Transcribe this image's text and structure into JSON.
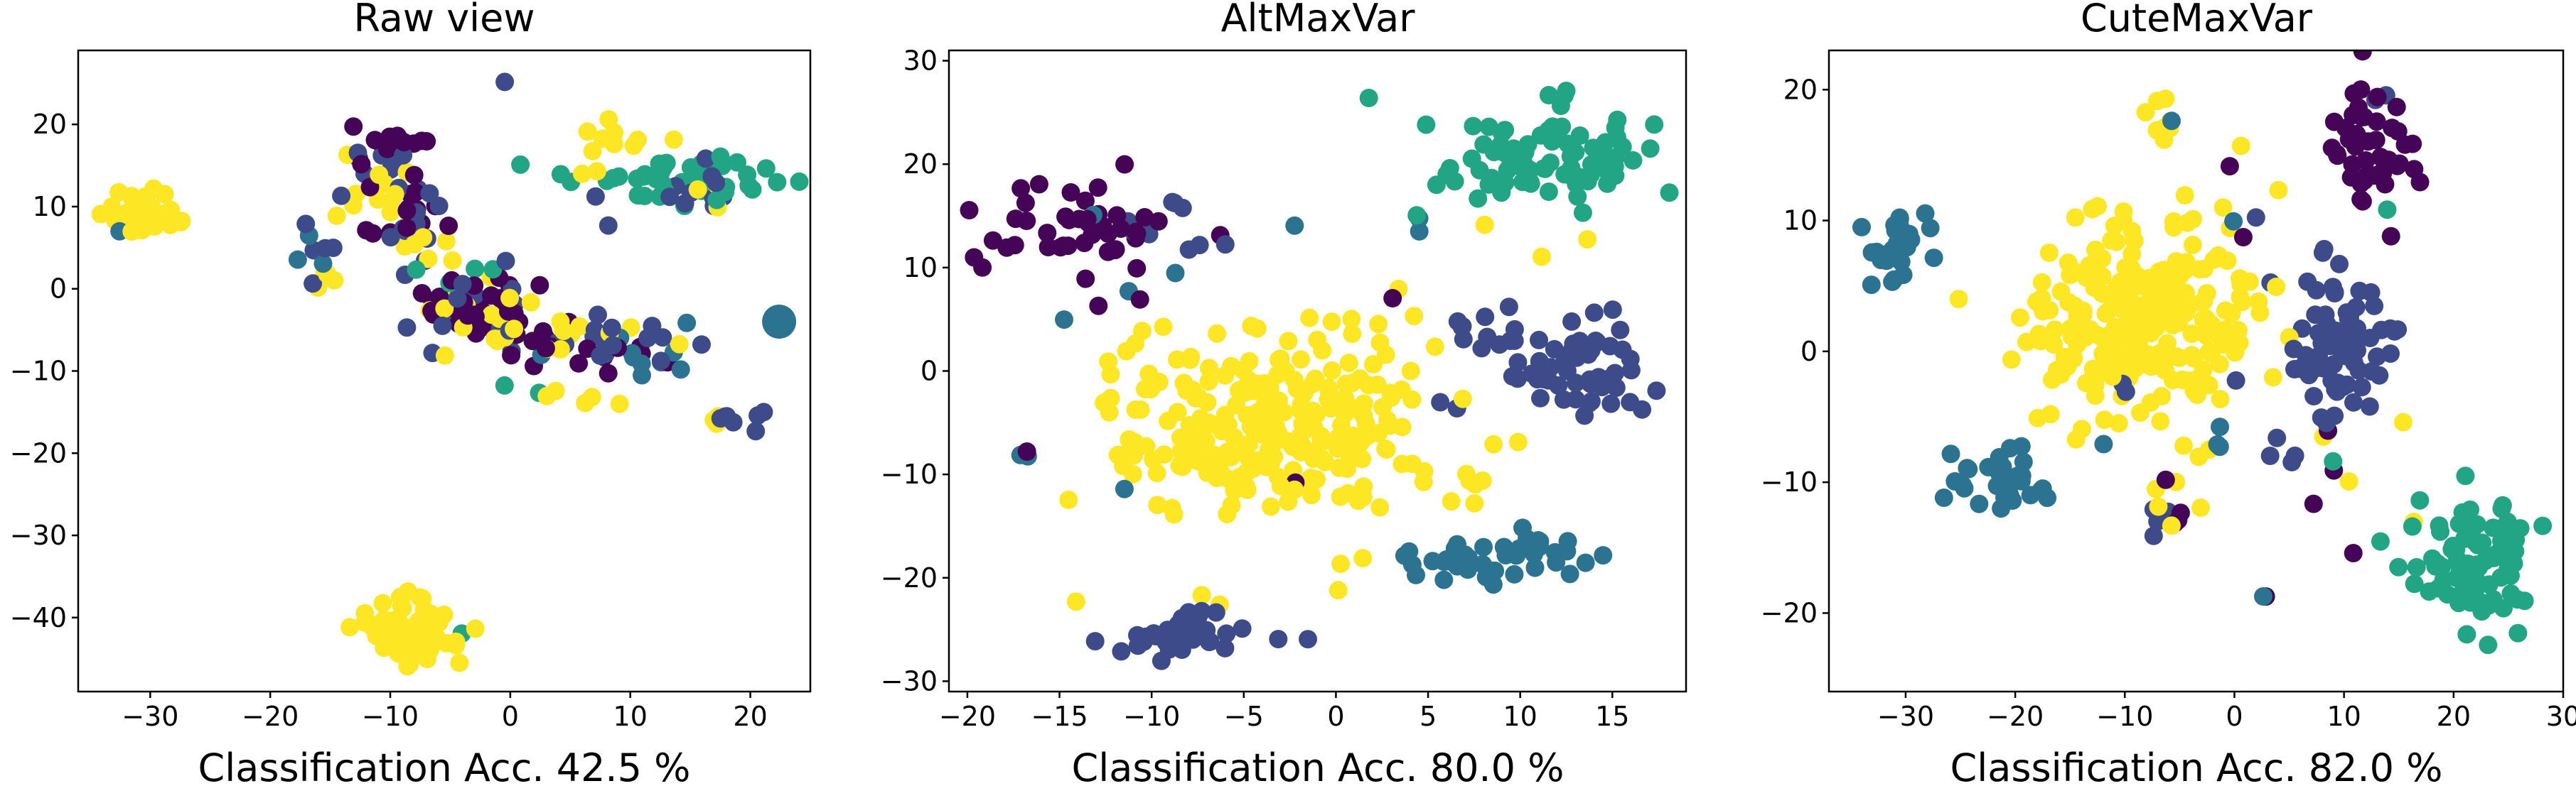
{
  "chart_data": [
    {
      "type": "scatter",
      "title": "Raw view",
      "xlabel": "Classification Acc. 42.5 %",
      "ylabel": "",
      "xlim": [
        -36,
        25
      ],
      "ylim": [
        -49,
        29
      ],
      "xticks": [
        -30,
        -20,
        -10,
        0,
        10,
        20
      ],
      "yticks": [
        -40,
        -30,
        -20,
        -10,
        0,
        10,
        20
      ],
      "grid": false,
      "clusters": [
        {
          "class": 4,
          "cx": -30.5,
          "cy": 9,
          "sx": 1.6,
          "sy": 1.3,
          "n": 40
        },
        {
          "class": 4,
          "cx": -9,
          "cy": -42,
          "sx": 2.2,
          "sy": 1.8,
          "n": 70
        },
        {
          "class": 4,
          "cx": -8.5,
          "cy": -37,
          "sx": 0.6,
          "sy": 1,
          "n": 4
        },
        {
          "class": 2,
          "cx": -3.5,
          "cy": -42,
          "sx": 0.2,
          "sy": 0.2,
          "n": 1
        },
        {
          "class": 2,
          "cx": 15,
          "cy": 13,
          "sx": 4.5,
          "sy": 1.5,
          "n": 45
        },
        {
          "class": 1,
          "cx": 15,
          "cy": 12,
          "sx": 3.5,
          "sy": 1.5,
          "n": 12
        },
        {
          "class": 4,
          "cx": 8,
          "cy": 18,
          "sx": 2.5,
          "sy": 1.2,
          "n": 10
        },
        {
          "class": 4,
          "cx": 16.5,
          "cy": 11,
          "sx": 1.5,
          "sy": 1,
          "n": 3
        },
        {
          "class": 0,
          "cx": -10,
          "cy": 17,
          "sx": 1.5,
          "sy": 2,
          "n": 15
        },
        {
          "class": 1,
          "cx": -11,
          "cy": 14,
          "sx": 2,
          "sy": 2,
          "n": 10
        },
        {
          "class": 4,
          "cx": -11,
          "cy": 12,
          "sx": 1.5,
          "sy": 2,
          "n": 12
        },
        {
          "class": 0,
          "cx": -8,
          "cy": 8,
          "sx": 2,
          "sy": 2,
          "n": 14
        },
        {
          "class": 1,
          "cx": -8,
          "cy": 8,
          "sx": 2,
          "sy": 2,
          "n": 8
        },
        {
          "class": 4,
          "cx": -7,
          "cy": 5,
          "sx": 1.5,
          "sy": 2,
          "n": 6
        },
        {
          "class": 0,
          "cx": -3,
          "cy": -3,
          "sx": 2.5,
          "sy": 2,
          "n": 35
        },
        {
          "class": 1,
          "cx": -4,
          "cy": -2,
          "sx": 3,
          "sy": 2.5,
          "n": 16
        },
        {
          "class": 4,
          "cx": -3,
          "cy": -4,
          "sx": 3,
          "sy": 2.5,
          "n": 14
        },
        {
          "class": 2,
          "cx": -4,
          "cy": 1,
          "sx": 2,
          "sy": 1.5,
          "n": 4
        },
        {
          "class": 0,
          "cx": 6,
          "cy": -7,
          "sx": 3.5,
          "sy": 1.5,
          "n": 16
        },
        {
          "class": 1,
          "cx": 8,
          "cy": -7,
          "sx": 3.5,
          "sy": 1.5,
          "n": 18
        },
        {
          "class": 4,
          "cx": 6,
          "cy": -6,
          "sx": 4,
          "sy": 1.5,
          "n": 12
        },
        {
          "class": 3,
          "cx": 9,
          "cy": -8,
          "sx": 3,
          "sy": 1.5,
          "n": 6
        },
        {
          "class": 1,
          "cx": -16,
          "cy": 4,
          "sx": 1,
          "sy": 3,
          "n": 5
        },
        {
          "class": 4,
          "cx": -15,
          "cy": 1,
          "sx": 0.6,
          "sy": 1,
          "n": 4
        },
        {
          "class": 3,
          "cx": -16,
          "cy": 5,
          "sx": 0.8,
          "sy": 2,
          "n": 3
        },
        {
          "class": 1,
          "cx": 18.5,
          "cy": -16,
          "sx": 1.2,
          "sy": 0.6,
          "n": 7
        },
        {
          "class": 4,
          "cx": 17.5,
          "cy": -16,
          "sx": 0.6,
          "sy": 0.5,
          "n": 3
        },
        {
          "class": 4,
          "cx": 7.5,
          "cy": -14,
          "sx": 1,
          "sy": 0.5,
          "n": 3
        },
        {
          "class": 4,
          "cx": 3,
          "cy": -13,
          "sx": 0.6,
          "sy": 0.5,
          "n": 2
        },
        {
          "class": 4,
          "cx": 6.5,
          "cy": 14,
          "sx": 1.5,
          "sy": 0.3,
          "n": 2
        },
        {
          "class": 2,
          "cx": 2.5,
          "cy": -13,
          "sx": 0.5,
          "sy": 0.3,
          "n": 1
        },
        {
          "class": 2,
          "cx": -0.3,
          "cy": -12,
          "sx": 0.2,
          "sy": 0.2,
          "n": 1
        },
        {
          "class": 1,
          "cx": -0.5,
          "cy": 25.3,
          "sx": 0.1,
          "sy": 0.1,
          "n": 1
        },
        {
          "class": 3,
          "cx": 15,
          "cy": -4,
          "sx": 0.2,
          "sy": 0.2,
          "n": 1
        },
        {
          "class": 3,
          "cx": -32.5,
          "cy": 7,
          "sx": 0.2,
          "sy": 0.2,
          "n": 1
        },
        {
          "class": 3,
          "cx": 12.5,
          "cy": -9,
          "sx": 1.5,
          "sy": 0.8,
          "n": 3
        }
      ],
      "big_points": [
        {
          "class": 3,
          "x": 22.4,
          "y": -4
        }
      ]
    },
    {
      "type": "scatter",
      "title": "AltMaxVar",
      "xlabel": "Classification Acc. 80.0 %",
      "ylabel": "",
      "xlim": [
        -21,
        19
      ],
      "ylim": [
        -31,
        31
      ],
      "xticks": [
        -20,
        -15,
        -10,
        -5,
        0,
        5,
        10,
        15
      ],
      "yticks": [
        -30,
        -20,
        -10,
        0,
        10,
        20,
        30
      ],
      "grid": false,
      "clusters": [
        {
          "class": 4,
          "cx": -3.5,
          "cy": -5,
          "sx": 4.5,
          "sy": 4.5,
          "n": 260
        },
        {
          "class": 0,
          "cx": -13.5,
          "cy": 14,
          "sx": 2.3,
          "sy": 2.6,
          "n": 45
        },
        {
          "class": 2,
          "cx": 11,
          "cy": 21,
          "sx": 3.2,
          "sy": 2.8,
          "n": 85
        },
        {
          "class": 1,
          "cx": 13.5,
          "cy": 0,
          "sx": 2,
          "sy": 3,
          "n": 50
        },
        {
          "class": 1,
          "cx": 8,
          "cy": 2.5,
          "sx": 1.5,
          "sy": 2,
          "n": 10
        },
        {
          "class": 3,
          "cx": 8.5,
          "cy": -18,
          "sx": 2.2,
          "sy": 1.1,
          "n": 40
        },
        {
          "class": 1,
          "cx": -8,
          "cy": -25.5,
          "sx": 2,
          "sy": 1.1,
          "n": 40
        },
        {
          "class": 1,
          "cx": -10,
          "cy": 17,
          "sx": 1,
          "sy": 2,
          "n": 6
        },
        {
          "class": 3,
          "cx": -17,
          "cy": -8,
          "sx": 0.5,
          "sy": 0.3,
          "n": 2
        },
        {
          "class": 3,
          "cx": -14.5,
          "cy": 5,
          "sx": 0.2,
          "sy": 0.2,
          "n": 1
        },
        {
          "class": 3,
          "cx": -11.5,
          "cy": -11.5,
          "sx": 0.2,
          "sy": 0.2,
          "n": 1
        },
        {
          "class": 3,
          "cx": -13,
          "cy": 15,
          "sx": 0.2,
          "sy": 0.2,
          "n": 1
        },
        {
          "class": 3,
          "cx": -11,
          "cy": 8,
          "sx": 0.2,
          "sy": 0.2,
          "n": 1
        },
        {
          "class": 3,
          "cx": -8.5,
          "cy": 9.5,
          "sx": 0.2,
          "sy": 0.2,
          "n": 1
        },
        {
          "class": 3,
          "cx": -2.5,
          "cy": 14,
          "sx": 0.2,
          "sy": 0.2,
          "n": 1
        },
        {
          "class": 3,
          "cx": 5.5,
          "cy": -17,
          "sx": 1,
          "sy": 0.5,
          "n": 2
        },
        {
          "class": 3,
          "cx": 4.5,
          "cy": 13,
          "sx": 0.3,
          "sy": 1.5,
          "n": 2
        },
        {
          "class": 0,
          "cx": -17,
          "cy": -8,
          "sx": 0.2,
          "sy": 0.2,
          "n": 1
        },
        {
          "class": 0,
          "cx": -18,
          "cy": 12,
          "sx": 0.2,
          "sy": 0.2,
          "n": 1
        },
        {
          "class": 0,
          "cx": -2,
          "cy": -11,
          "sx": 0.2,
          "sy": 0.2,
          "n": 1
        },
        {
          "class": 0,
          "cx": 3,
          "cy": 7,
          "sx": 0.2,
          "sy": 0.2,
          "n": 1
        },
        {
          "class": 1,
          "cx": -8,
          "cy": 12,
          "sx": 1,
          "sy": 0.4,
          "n": 2
        },
        {
          "class": 1,
          "cx": -6,
          "cy": 12,
          "sx": 0.3,
          "sy": 0.3,
          "n": 1
        },
        {
          "class": 1,
          "cx": 7,
          "cy": 4.5,
          "sx": 0.5,
          "sy": 0.5,
          "n": 2
        },
        {
          "class": 1,
          "cx": 6,
          "cy": -4,
          "sx": 0.5,
          "sy": 0.5,
          "n": 2
        },
        {
          "class": 4,
          "cx": -14,
          "cy": -22,
          "sx": 0.3,
          "sy": 0.2,
          "n": 1
        },
        {
          "class": 4,
          "cx": -7.5,
          "cy": -22,
          "sx": 0.3,
          "sy": 0.2,
          "n": 1
        },
        {
          "class": 4,
          "cx": 8,
          "cy": -11,
          "sx": 0.5,
          "sy": 0.8,
          "n": 4
        },
        {
          "class": 4,
          "cx": 8.3,
          "cy": 14.5,
          "sx": 0.2,
          "sy": 0.2,
          "n": 1
        },
        {
          "class": 4,
          "cx": 11.5,
          "cy": 11,
          "sx": 0.2,
          "sy": 0.2,
          "n": 1
        },
        {
          "class": 4,
          "cx": 13.5,
          "cy": 12.5,
          "sx": 0.2,
          "sy": 0.2,
          "n": 1
        },
        {
          "class": 4,
          "cx": 3.5,
          "cy": 8,
          "sx": 0.2,
          "sy": 0.2,
          "n": 1
        }
      ],
      "big_points": []
    },
    {
      "type": "scatter",
      "title": "CuteMaxVar",
      "xlabel": "Classification Acc. 82.0 %",
      "ylabel": "",
      "xlim": [
        -37,
        30
      ],
      "ylim": [
        -26,
        23
      ],
      "xticks": [
        -30,
        -20,
        -10,
        0,
        10,
        20,
        30
      ],
      "yticks": [
        -20,
        -10,
        0,
        10,
        20
      ],
      "grid": false,
      "clusters": [
        {
          "class": 4,
          "cx": -8,
          "cy": 3,
          "sx": 5,
          "sy": 4,
          "n": 260
        },
        {
          "class": 4,
          "cx": -6,
          "cy": 18,
          "sx": 0.8,
          "sy": 1,
          "n": 8
        },
        {
          "class": 0,
          "cx": 12,
          "cy": 15,
          "sx": 2,
          "sy": 2.5,
          "n": 45
        },
        {
          "class": 3,
          "cx": -30.5,
          "cy": 8,
          "sx": 1.6,
          "sy": 1.6,
          "n": 30
        },
        {
          "class": 3,
          "cx": -21,
          "cy": -10,
          "sx": 2.2,
          "sy": 1.6,
          "n": 35
        },
        {
          "class": 1,
          "cx": 10,
          "cy": 0,
          "sx": 3,
          "sy": 3,
          "n": 70
        },
        {
          "class": 2,
          "cx": 22,
          "cy": -16,
          "sx": 3,
          "sy": 2.5,
          "n": 80
        },
        {
          "class": 0,
          "cx": -6,
          "cy": -12.5,
          "sx": 1,
          "sy": 0.8,
          "n": 4
        },
        {
          "class": 1,
          "cx": -7,
          "cy": -13,
          "sx": 1,
          "sy": 0.8,
          "n": 4
        },
        {
          "class": 4,
          "cx": -6,
          "cy": -11,
          "sx": 1.5,
          "sy": 1,
          "n": 6
        },
        {
          "class": 0,
          "cx": 3,
          "cy": -18.5,
          "sx": 0.2,
          "sy": 0.2,
          "n": 1
        },
        {
          "class": 0,
          "cx": 9,
          "cy": -8,
          "sx": 0.8,
          "sy": 1,
          "n": 2
        },
        {
          "class": 0,
          "cx": 11,
          "cy": -15.5,
          "sx": 0.2,
          "sy": 0.2,
          "n": 1
        },
        {
          "class": 0,
          "cx": 7,
          "cy": -11.5,
          "sx": 0.2,
          "sy": 0.2,
          "n": 1
        },
        {
          "class": 0,
          "cx": 0,
          "cy": 14,
          "sx": 0.2,
          "sy": 0.2,
          "n": 1
        },
        {
          "class": 0,
          "cx": 1,
          "cy": 9,
          "sx": 0.2,
          "sy": 0.2,
          "n": 1
        },
        {
          "class": 3,
          "cx": 2.5,
          "cy": -18.5,
          "sx": 0.2,
          "sy": 0.2,
          "n": 1
        },
        {
          "class": 3,
          "cx": -6,
          "cy": 18,
          "sx": 0.3,
          "sy": 0.2,
          "n": 1
        },
        {
          "class": 3,
          "cx": -12,
          "cy": -7,
          "sx": 0.3,
          "sy": 0.2,
          "n": 1
        },
        {
          "class": 3,
          "cx": -2,
          "cy": -7,
          "sx": 0.5,
          "sy": 0.5,
          "n": 2
        },
        {
          "class": 3,
          "cx": 0,
          "cy": 9.5,
          "sx": 0.3,
          "sy": 0.3,
          "n": 1
        },
        {
          "class": 3,
          "cx": -1,
          "cy": -6,
          "sx": 0.3,
          "sy": 0.3,
          "n": 1
        },
        {
          "class": 2,
          "cx": 9,
          "cy": -8.5,
          "sx": 0.2,
          "sy": 0.2,
          "n": 1
        },
        {
          "class": 2,
          "cx": 14,
          "cy": 10.5,
          "sx": 0.2,
          "sy": 0.2,
          "n": 1
        },
        {
          "class": 1,
          "cx": -10,
          "cy": -2.5,
          "sx": 0.5,
          "sy": 0.5,
          "n": 2
        },
        {
          "class": 1,
          "cx": 4,
          "cy": -7.5,
          "sx": 0.8,
          "sy": 0.8,
          "n": 3
        },
        {
          "class": 1,
          "cx": 2,
          "cy": 10.5,
          "sx": 0.2,
          "sy": 0.2,
          "n": 1
        },
        {
          "class": 1,
          "cx": 14,
          "cy": 19,
          "sx": 0.5,
          "sy": 0.5,
          "n": 2
        },
        {
          "class": 4,
          "cx": 15.5,
          "cy": -5,
          "sx": 0.3,
          "sy": 0.3,
          "n": 1
        },
        {
          "class": 4,
          "cx": 17,
          "cy": -12.5,
          "sx": 0.3,
          "sy": 0.3,
          "n": 1
        },
        {
          "class": 4,
          "cx": 10.5,
          "cy": -9.5,
          "sx": 0.3,
          "sy": 0.3,
          "n": 1
        },
        {
          "class": 4,
          "cx": -25.5,
          "cy": 4.5,
          "sx": 0.3,
          "sy": 0.3,
          "n": 1
        },
        {
          "class": 4,
          "cx": 0.5,
          "cy": 15.5,
          "sx": 0.3,
          "sy": 0.3,
          "n": 1
        }
      ],
      "big_points": []
    }
  ],
  "class_colors": [
    "#440154",
    "#3b528b",
    "#21918c",
    "#2c728e",
    "#fde725"
  ],
  "class_colors_render": [
    "#450457",
    "#3e4b8a",
    "#21a585",
    "#2c7391",
    "#fde725"
  ]
}
